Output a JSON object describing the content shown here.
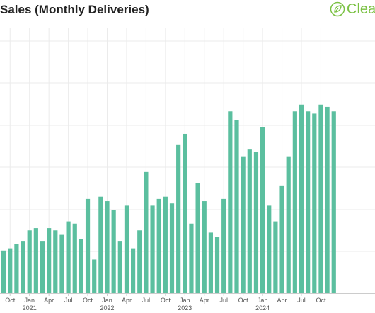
{
  "title": "Sales (Monthly Deliveries)",
  "brand": {
    "name": "Clear",
    "icon": "leaf-logo-icon",
    "color": "#7ac142"
  },
  "chart_data": {
    "type": "bar",
    "bar_color": "#5bbf9f",
    "grid": true,
    "ylim": [
      0,
      118
    ],
    "x_axis": {
      "month_ticks": [
        {
          "index": 1,
          "label": "Oct"
        },
        {
          "index": 4,
          "label": "Jan"
        },
        {
          "index": 7,
          "label": "Apr"
        },
        {
          "index": 10,
          "label": "Jul"
        },
        {
          "index": 13,
          "label": "Oct"
        },
        {
          "index": 16,
          "label": "Jan"
        },
        {
          "index": 19,
          "label": "Apr"
        },
        {
          "index": 22,
          "label": "Jul"
        },
        {
          "index": 25,
          "label": "Oct"
        },
        {
          "index": 28,
          "label": "Jan"
        },
        {
          "index": 31,
          "label": "Apr"
        },
        {
          "index": 34,
          "label": "Jul"
        },
        {
          "index": 37,
          "label": "Oct"
        },
        {
          "index": 40,
          "label": "Jan"
        },
        {
          "index": 43,
          "label": "Apr"
        },
        {
          "index": 46,
          "label": "Jul"
        },
        {
          "index": 49,
          "label": "Oct"
        }
      ],
      "year_labels": [
        {
          "index": 4,
          "label": "2021"
        },
        {
          "index": 16,
          "label": "2022"
        },
        {
          "index": 28,
          "label": "2023"
        },
        {
          "index": 40,
          "label": "2024"
        }
      ]
    },
    "values": [
      19,
      20,
      22,
      23,
      28,
      29,
      23,
      29,
      28,
      26,
      32,
      31,
      24,
      42,
      15,
      43,
      41,
      37,
      23,
      39,
      20,
      28,
      54,
      39,
      42,
      43,
      40,
      66,
      71,
      31,
      49,
      41,
      27,
      25,
      42,
      81,
      77,
      61,
      64,
      63,
      74,
      39,
      32,
      48,
      61,
      81,
      84,
      81,
      80,
      84,
      83,
      81
    ]
  }
}
